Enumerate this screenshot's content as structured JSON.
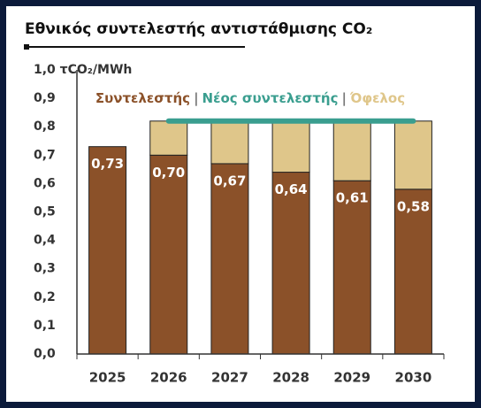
{
  "chart_data": {
    "type": "bar",
    "stacked": true,
    "title": "Εθνικός συντελεστής αντιστάθμισης CO₂",
    "legend_separator": "|",
    "categories": [
      "2025",
      "2026",
      "2027",
      "2028",
      "2029",
      "2030"
    ],
    "series": [
      {
        "name": "Συντελεστής",
        "color": "#8b5129",
        "values": [
          0.73,
          0.7,
          0.67,
          0.64,
          0.61,
          0.58
        ],
        "value_labels": [
          "0,73",
          "0,70",
          "0,67",
          "0,64",
          "0,61",
          "0,58"
        ]
      },
      {
        "name": "Νέος συντελεστής",
        "color": "#3a9e8f",
        "type": "line",
        "values": [
          null,
          0.82,
          0.82,
          0.82,
          0.82,
          0.82
        ]
      },
      {
        "name": "Όφελος",
        "color": "#dfc68a",
        "values": [
          null,
          0.12,
          0.15,
          0.18,
          0.21,
          0.24
        ]
      }
    ],
    "ylim": [
      0,
      1.0
    ],
    "yticks": [
      {
        "value": 0,
        "label": "0,0"
      },
      {
        "value": 0.1,
        "label": "0,1"
      },
      {
        "value": 0.2,
        "label": "0,2"
      },
      {
        "value": 0.3,
        "label": "0,3"
      },
      {
        "value": 0.4,
        "label": "0,4"
      },
      {
        "value": 0.5,
        "label": "0,5"
      },
      {
        "value": 0.6,
        "label": "0,6"
      },
      {
        "value": 0.7,
        "label": "0,7"
      },
      {
        "value": 0.8,
        "label": "0,8"
      },
      {
        "value": 0.9,
        "label": "0,9"
      },
      {
        "value": 1.0,
        "label": "1,0 τCO₂/MWh"
      }
    ],
    "grid": false
  }
}
